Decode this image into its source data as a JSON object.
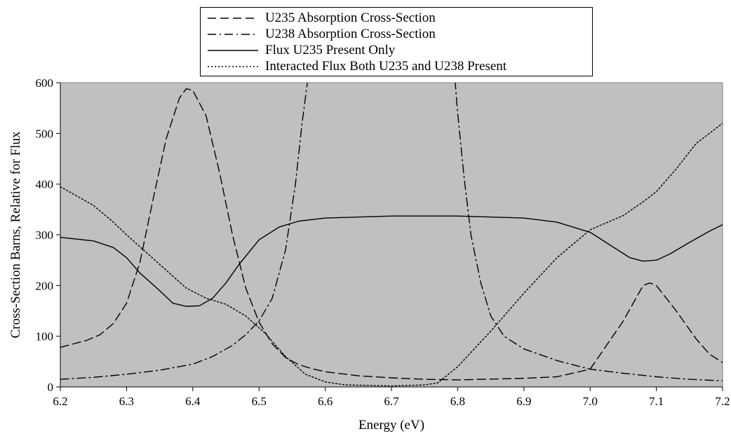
{
  "chart_data": {
    "type": "line",
    "title": "",
    "xlabel": "Energy (eV)",
    "ylabel": "Cross-Section Barns, Relative for Flux",
    "xlim": [
      6.2,
      7.2
    ],
    "ylim": [
      0,
      600
    ],
    "x_ticks": [
      "6.2",
      "6.3",
      "6.4",
      "6.5",
      "6.6",
      "6.7",
      "6.8",
      "6.9",
      "7.0",
      "7.1",
      "7.2"
    ],
    "y_ticks": [
      "0",
      "100",
      "200",
      "300",
      "400",
      "500",
      "600"
    ],
    "x_tick_values": [
      6.2,
      6.3,
      6.4,
      6.5,
      6.6,
      6.7,
      6.8,
      6.9,
      7.0,
      7.1,
      7.2
    ],
    "y_tick_values": [
      0,
      100,
      200,
      300,
      400,
      500,
      600
    ],
    "plot_background": "#c0c0c0",
    "grid": false,
    "legend_position": "top",
    "series": [
      {
        "name": "U235 Absorption Cross-Section",
        "style": "dashed",
        "color": "#000000",
        "points": [
          [
            6.2,
            78
          ],
          [
            6.22,
            85
          ],
          [
            6.24,
            92
          ],
          [
            6.26,
            103
          ],
          [
            6.28,
            125
          ],
          [
            6.3,
            165
          ],
          [
            6.32,
            245
          ],
          [
            6.34,
            370
          ],
          [
            6.36,
            490
          ],
          [
            6.38,
            570
          ],
          [
            6.39,
            588
          ],
          [
            6.4,
            585
          ],
          [
            6.42,
            535
          ],
          [
            6.44,
            425
          ],
          [
            6.46,
            300
          ],
          [
            6.48,
            195
          ],
          [
            6.5,
            128
          ],
          [
            6.52,
            85
          ],
          [
            6.54,
            58
          ],
          [
            6.56,
            44
          ],
          [
            6.58,
            36
          ],
          [
            6.6,
            30
          ],
          [
            6.65,
            22
          ],
          [
            6.7,
            18
          ],
          [
            6.75,
            15
          ],
          [
            6.8,
            14
          ],
          [
            6.9,
            17
          ],
          [
            6.95,
            20
          ],
          [
            7.0,
            35
          ],
          [
            7.05,
            130
          ],
          [
            7.08,
            200
          ],
          [
            7.09,
            205
          ],
          [
            7.1,
            200
          ],
          [
            7.13,
            150
          ],
          [
            7.16,
            95
          ],
          [
            7.18,
            65
          ],
          [
            7.2,
            48
          ]
        ]
      },
      {
        "name": "U238 Absorption Cross-Section",
        "style": "dashdot",
        "color": "#000000",
        "points": [
          [
            6.2,
            15
          ],
          [
            6.25,
            19
          ],
          [
            6.3,
            25
          ],
          [
            6.35,
            33
          ],
          [
            6.4,
            45
          ],
          [
            6.43,
            60
          ],
          [
            6.46,
            82
          ],
          [
            6.48,
            103
          ],
          [
            6.5,
            130
          ],
          [
            6.52,
            175
          ],
          [
            6.54,
            270
          ],
          [
            6.555,
            400
          ],
          [
            6.565,
            520
          ],
          [
            6.575,
            620
          ],
          [
            6.795,
            620
          ],
          [
            6.8,
            540
          ],
          [
            6.81,
            410
          ],
          [
            6.82,
            300
          ],
          [
            6.835,
            205
          ],
          [
            6.85,
            140
          ],
          [
            6.87,
            100
          ],
          [
            6.9,
            75
          ],
          [
            6.95,
            52
          ],
          [
            7.0,
            35
          ],
          [
            7.05,
            27
          ],
          [
            7.1,
            20
          ],
          [
            7.15,
            15
          ],
          [
            7.2,
            12
          ]
        ]
      },
      {
        "name": "Flux U235 Present Only",
        "style": "solid",
        "color": "#000000",
        "points": [
          [
            6.2,
            295
          ],
          [
            6.25,
            288
          ],
          [
            6.28,
            275
          ],
          [
            6.3,
            255
          ],
          [
            6.32,
            225
          ],
          [
            6.35,
            190
          ],
          [
            6.37,
            165
          ],
          [
            6.39,
            159
          ],
          [
            6.41,
            160
          ],
          [
            6.43,
            175
          ],
          [
            6.45,
            205
          ],
          [
            6.47,
            242
          ],
          [
            6.5,
            290
          ],
          [
            6.53,
            315
          ],
          [
            6.56,
            327
          ],
          [
            6.6,
            333
          ],
          [
            6.7,
            337
          ],
          [
            6.8,
            337
          ],
          [
            6.9,
            333
          ],
          [
            6.95,
            325
          ],
          [
            7.0,
            305
          ],
          [
            7.03,
            280
          ],
          [
            7.06,
            255
          ],
          [
            7.08,
            248
          ],
          [
            7.1,
            250
          ],
          [
            7.12,
            262
          ],
          [
            7.15,
            285
          ],
          [
            7.18,
            307
          ],
          [
            7.2,
            320
          ]
        ]
      },
      {
        "name": "Interacted Flux Both U235 and U238 Present",
        "style": "dotted",
        "color": "#000000",
        "points": [
          [
            6.2,
            395
          ],
          [
            6.25,
            358
          ],
          [
            6.28,
            325
          ],
          [
            6.3,
            300
          ],
          [
            6.33,
            265
          ],
          [
            6.36,
            230
          ],
          [
            6.39,
            195
          ],
          [
            6.42,
            175
          ],
          [
            6.45,
            163
          ],
          [
            6.48,
            140
          ],
          [
            6.51,
            105
          ],
          [
            6.54,
            60
          ],
          [
            6.57,
            25
          ],
          [
            6.6,
            10
          ],
          [
            6.63,
            4
          ],
          [
            6.7,
            2
          ],
          [
            6.75,
            4
          ],
          [
            6.77,
            8
          ],
          [
            6.8,
            40
          ],
          [
            6.85,
            110
          ],
          [
            6.9,
            185
          ],
          [
            6.95,
            255
          ],
          [
            7.0,
            310
          ],
          [
            7.05,
            338
          ],
          [
            7.08,
            365
          ],
          [
            7.1,
            385
          ],
          [
            7.13,
            430
          ],
          [
            7.16,
            480
          ],
          [
            7.2,
            520
          ]
        ]
      }
    ]
  }
}
